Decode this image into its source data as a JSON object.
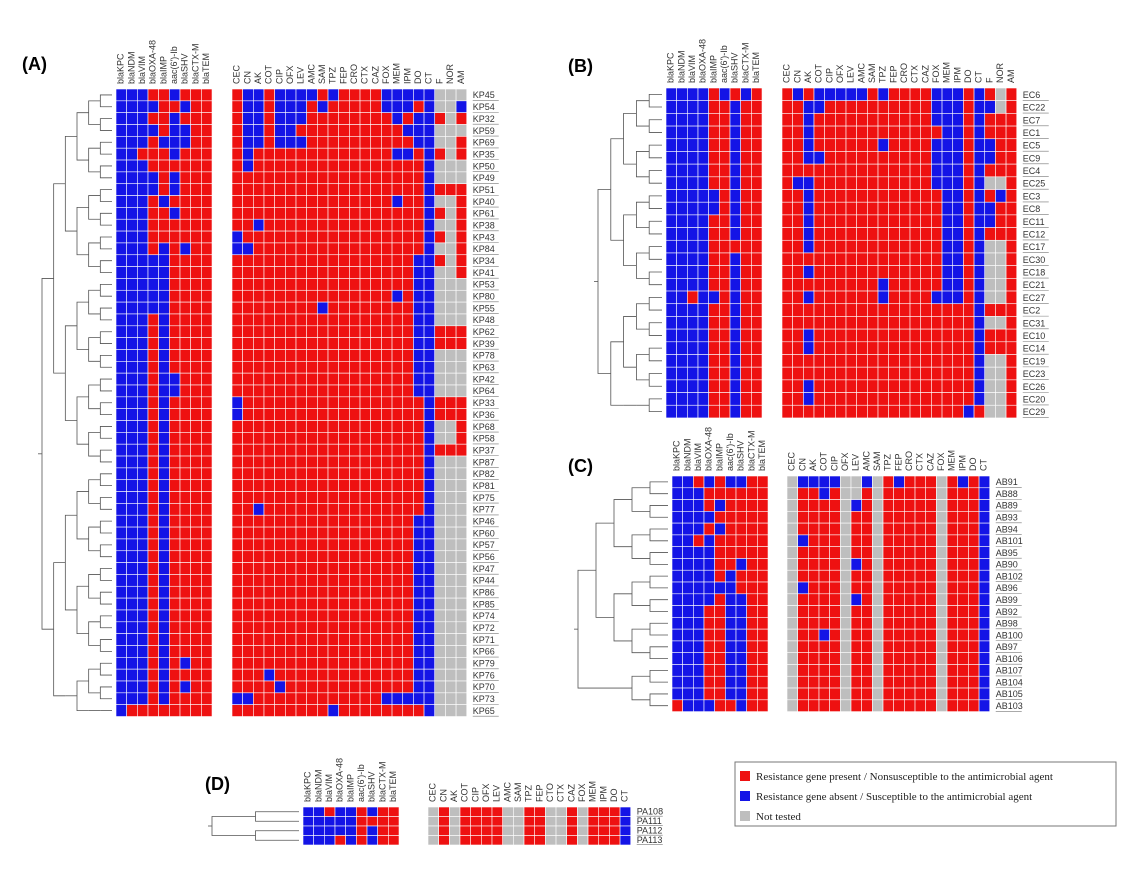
{
  "colors": {
    "resistant": "#ee1111",
    "susceptible": "#1414e6",
    "not_tested": "#bebebe"
  },
  "legend": {
    "items": [
      {
        "label": "Resistance gene present / Nonsusceptible to the antimicrobial agent",
        "color": "#ee1111"
      },
      {
        "label": "Resistance gene absent / Susceptible to the antimicrobial agent",
        "color": "#1414e6"
      },
      {
        "label": "Not tested",
        "color": "#bebebe"
      }
    ]
  },
  "chart_data": [
    {
      "type": "heatmap",
      "panel": "(A)",
      "genes": [
        "blaKPC",
        "blaNDM",
        "blaVIM",
        "blaOXA-48",
        "blaIMP",
        "aac(6')-Ib",
        "blaSHV",
        "blaCTX-M",
        "blaTEM"
      ],
      "drugs": [
        "CEC",
        "CN",
        "AK",
        "COT",
        "CIP",
        "OFX",
        "LEV",
        "AMC",
        "SAM",
        "TPZ",
        "FEP",
        "CRO",
        "CTX",
        "CAZ",
        "FOX",
        "MEM",
        "IPM",
        "DO",
        "CT",
        "F",
        "NOR",
        "AM"
      ],
      "rows": [
        {
          "id": "KP45",
          "g": "BBBRRBRRR",
          "d": "RBBRBBBBRBRRRRBBBBBGGG"
        },
        {
          "id": "KP54",
          "g": "BBBBRRBRR",
          "d": "RBBRBBBRBRRRRRBBBRBGGB"
        },
        {
          "id": "KP32",
          "g": "BBBRRBRRR",
          "d": "RBBRBBBRRRRRRRRBRBBRGR"
        },
        {
          "id": "KP59",
          "g": "BBBBRBBRR",
          "d": "RBBRBBRRRRRRRRRRBBBGGG"
        },
        {
          "id": "KP69",
          "g": "BBBRBBBRR",
          "d": "RBBRBBBRRRRRRRRRRBBGGR"
        },
        {
          "id": "KP35",
          "g": "BBRRRBRRR",
          "d": "RBRRRRRRRRRRRRRBBRBRGR"
        },
        {
          "id": "KP50",
          "g": "BBBRRRRRR",
          "d": "RBRRRRRRRRRRRRRRRRBGGG"
        },
        {
          "id": "KP49",
          "g": "BBBBRBRRR",
          "d": "RRRRRRRRRRRRRRRRRRBGGG"
        },
        {
          "id": "KP51",
          "g": "BBBBRBRRR",
          "d": "RRRRRRRRRRRRRRRRRRBRRR"
        },
        {
          "id": "KP40",
          "g": "BBBRBRRRR",
          "d": "RRRRRRRRRRRRRRRBRRBGGR"
        },
        {
          "id": "KP61",
          "g": "BBBRRBRRR",
          "d": "RRRRRRRRRRRRRRRRRRBRGR"
        },
        {
          "id": "KP38",
          "g": "BBBRRRRRR",
          "d": "RRBRRRRRRRRRRRRRRRBGGR"
        },
        {
          "id": "KP43",
          "g": "BBBRRRRRR",
          "d": "BRRRRRRRRRRRRRRRRRBRGR"
        },
        {
          "id": "KP84",
          "g": "BBBRBRBRR",
          "d": "BBRRRRRRRRRRRRRRRRBGGR"
        },
        {
          "id": "KP34",
          "g": "BBBBBRRRR",
          "d": "RRRRRRRRRRRRRRRRRBBRGR"
        },
        {
          "id": "KP41",
          "g": "BBBBBRRRR",
          "d": "RRRRRRRRRRRRRRRRRBBGGR"
        },
        {
          "id": "KP53",
          "g": "BBBBBRRRR",
          "d": "RRRRRRRRRRRRRRRRRBBGGG"
        },
        {
          "id": "KP80",
          "g": "BBBBBRRRR",
          "d": "RRRRRRRRRRRRRRRBRBBGGG"
        },
        {
          "id": "KP55",
          "g": "BBBBBRRRR",
          "d": "RRRRRRRRBRRRRRRRRBBGGG"
        },
        {
          "id": "KP48",
          "g": "BBBRBRRRR",
          "d": "RRRRRRRRRRRRRRRRRBBGGG"
        },
        {
          "id": "KP62",
          "g": "BBBRBRRRR",
          "d": "RRRRRRRRRRRRRRRRRBBRRR"
        },
        {
          "id": "KP39",
          "g": "BBBRBRRRR",
          "d": "RRRRRRRRRRRRRRRRRBBRRR"
        },
        {
          "id": "KP78",
          "g": "BBBRBRRRR",
          "d": "RRRRRRRRRRRRRRRRRBBGGG"
        },
        {
          "id": "KP63",
          "g": "BBBRBRRRR",
          "d": "RRRRRRRRRRRRRRRRRBBGGG"
        },
        {
          "id": "KP42",
          "g": "BBBRBBRRR",
          "d": "RRRRRRRRRRRRRRRRRBBGGG"
        },
        {
          "id": "KP64",
          "g": "BBBRBBRRR",
          "d": "RRRRRRRRRRRRRRRRRBBGGG"
        },
        {
          "id": "KP33",
          "g": "BBBRBRRRR",
          "d": "BRRRRRRRRRRRRRRRRRBRRR"
        },
        {
          "id": "KP36",
          "g": "BBBRBRRRR",
          "d": "BRRRRRRRRRRRRRRRRRBRRR"
        },
        {
          "id": "KP68",
          "g": "BBBRBRRRR",
          "d": "RRRRRRRRRRRRRRRRRRBGGR"
        },
        {
          "id": "KP58",
          "g": "BBBRBRRRR",
          "d": "RRRRRRRRRRRRRRRRRRBGGR"
        },
        {
          "id": "KP37",
          "g": "BBBRBRRRR",
          "d": "RRRRRRRRRRRRRRRRRRBRRR"
        },
        {
          "id": "KP87",
          "g": "BBBRBRRRR",
          "d": "RRRRRRRRRRRRRRRRRRBGGG"
        },
        {
          "id": "KP82",
          "g": "BBBRBRRRR",
          "d": "RRRRRRRRRRRRRRRRRRBGGG"
        },
        {
          "id": "KP81",
          "g": "BBBRBRRRR",
          "d": "RRRRRRRRRRRRRRRRRRBGGG"
        },
        {
          "id": "KP75",
          "g": "BBBRBRRRR",
          "d": "RRRRRRRRRRRRRRRRRRBGGG"
        },
        {
          "id": "KP77",
          "g": "BBBRBRRRR",
          "d": "RRBRRRRRRRRRRRRRRRBGGG"
        },
        {
          "id": "KP46",
          "g": "BBBRBRRRR",
          "d": "RRRRRRRRRRRRRRRRRBBGGG"
        },
        {
          "id": "KP60",
          "g": "BBBRBRRRR",
          "d": "RRRRRRRRRRRRRRRRRBBGGG"
        },
        {
          "id": "KP57",
          "g": "BBBRBRRRR",
          "d": "RRRRRRRRRRRRRRRRRBBGGG"
        },
        {
          "id": "KP56",
          "g": "BBBRBRRRR",
          "d": "RRRRRRRRRRRRRRRRRBBGGG"
        },
        {
          "id": "KP47",
          "g": "BBBRBRRRR",
          "d": "RRRRRRRRRRRRRRRRRBBGGG"
        },
        {
          "id": "KP44",
          "g": "BBBRBRRRR",
          "d": "RRRRRRRRRRRRRRRRRBBGGG"
        },
        {
          "id": "KP86",
          "g": "BBBRBRRRR",
          "d": "RRRRRRRRRRRRRRRRRBBGGG"
        },
        {
          "id": "KP85",
          "g": "BBBRBRRRR",
          "d": "RRRRRRRRRRRRRRRRRBBGGG"
        },
        {
          "id": "KP74",
          "g": "BBBRBRRRR",
          "d": "RRRRRRRRRRRRRRRRRBBGGG"
        },
        {
          "id": "KP72",
          "g": "BBBRBRRRR",
          "d": "RRRRRRRRRRRRRRRRRBBGGG"
        },
        {
          "id": "KP71",
          "g": "BBBRBRRRR",
          "d": "RRRRRRRRRRRRRRRRRBBGGG"
        },
        {
          "id": "KP66",
          "g": "BBBRBRRRR",
          "d": "RRRRRRRRRRRRRRRRRBBGGG"
        },
        {
          "id": "KP79",
          "g": "BBBRBRBRR",
          "d": "RRRRRRRRRRRRRRRRRBBGGG"
        },
        {
          "id": "KP76",
          "g": "BBBRBRRRR",
          "d": "RRRBRRRRRRRRRRRRRBBGGG"
        },
        {
          "id": "KP70",
          "g": "BBBRBRBRR",
          "d": "RRRRBRRRRRRRRRRRRBBGGG"
        },
        {
          "id": "KP73",
          "g": "BBBRBRRRR",
          "d": "BBRRRRRRRRRRRRBBBBBGGG"
        },
        {
          "id": "KP65",
          "g": "BRRRRRRRR",
          "d": "RRRRRRRRRBRRRRRRRRBGGG"
        }
      ]
    },
    {
      "type": "heatmap",
      "panel": "(B)",
      "genes": [
        "blaKPC",
        "blaNDM",
        "blaVIM",
        "blaOXA-48",
        "blaIMP",
        "aac(6')-Ib",
        "blaSHV",
        "blaCTX-M",
        "blaTEM"
      ],
      "drugs": [
        "CEC",
        "CN",
        "AK",
        "COT",
        "CIP",
        "OFX",
        "LEV",
        "AMC",
        "SAM",
        "TPZ",
        "FEP",
        "CRO",
        "CTX",
        "CAZ",
        "FOX",
        "MEM",
        "IPM",
        "DO",
        "CT",
        "F",
        "NOR",
        "AM"
      ],
      "rows": [
        {
          "id": "EC6",
          "g": "BBBBRBRBR",
          "d": "RBRBBBBBRBRRRRBBBRBRGR"
        },
        {
          "id": "EC22",
          "g": "BBBBRRBRR",
          "d": "RRBBRRRRRRRRRRBBBRBBGR"
        },
        {
          "id": "EC7",
          "g": "BBBBRRBRR",
          "d": "RRBRRRRRRRRRRRBBBRBRRR"
        },
        {
          "id": "EC1",
          "g": "BBBBRRBRR",
          "d": "RRBRRRRRRRRRRRRBBRBRRR"
        },
        {
          "id": "EC5",
          "g": "BBBBRRBRR",
          "d": "RRBRRRRRRBRRRRBBBRBBRR"
        },
        {
          "id": "EC9",
          "g": "BBBBRRBRR",
          "d": "RRBBRRRRRRRRRRBBBRBBRR"
        },
        {
          "id": "EC4",
          "g": "BBBBRRBRR",
          "d": "RRRRRRRRRRRRRRBBBRBRRR"
        },
        {
          "id": "EC25",
          "g": "BBBBRRBRR",
          "d": "RBBRRRRRRRRRRRBBBRBGGR"
        },
        {
          "id": "EC3",
          "g": "BBBBBRBRR",
          "d": "RRBRRRRRRRRRRRRBBRBRBR"
        },
        {
          "id": "EC8",
          "g": "BBBBBRBRR",
          "d": "RRBRRRRRRRRRRRRBBRBBRR"
        },
        {
          "id": "EC11",
          "g": "BBBBRRBRR",
          "d": "RRBRRRRRRRRRRRRBBRBBRR"
        },
        {
          "id": "EC12",
          "g": "BBBBRRBRR",
          "d": "RRBRRRRRRRRRRRRBBRBRRR"
        },
        {
          "id": "EC17",
          "g": "BBBBRRRRR",
          "d": "RRBRRRRRRRRRRRRBBRBGGR"
        },
        {
          "id": "EC30",
          "g": "BBBBRRBRR",
          "d": "RRRRRRRRRRRRRRRBBRBGGR"
        },
        {
          "id": "EC18",
          "g": "BBBBRRBRR",
          "d": "RRBRRRRRRRRRRRRBBRBGGR"
        },
        {
          "id": "EC21",
          "g": "BBBBRRBRR",
          "d": "RRRRRRRRRBRRRRRBBRBGGR"
        },
        {
          "id": "EC27",
          "g": "BBRBBRBRR",
          "d": "RRBRRRRRRBRRRRBBBRBGGR"
        },
        {
          "id": "EC2",
          "g": "BBBBRRBRR",
          "d": "RRRRRRRRRRRRRRRRRRBRRR"
        },
        {
          "id": "EC31",
          "g": "BBBBRRBRR",
          "d": "RRRRRRRRRRRRRRRRRRBGGR"
        },
        {
          "id": "EC10",
          "g": "BBBBRRBRR",
          "d": "RRBRRRRRRRRRRRRRRRBRRR"
        },
        {
          "id": "EC14",
          "g": "BBBBRRBRR",
          "d": "RRBRRRRRRRRRRRRRRRBRRR"
        },
        {
          "id": "EC19",
          "g": "BBBBRRBRR",
          "d": "RRRRRRRRRRRRRRRRRRBGGR"
        },
        {
          "id": "EC23",
          "g": "BBBBRRBRR",
          "d": "RRRRRRRRRRRRRRRRRRBGGR"
        },
        {
          "id": "EC26",
          "g": "BBBBRRBRR",
          "d": "RRBRRRRRRRRRRRRRRRBGGR"
        },
        {
          "id": "EC20",
          "g": "BBBBRRBRR",
          "d": "RRBRRRRRRRRRRRRRRRBGGR"
        },
        {
          "id": "EC29",
          "g": "BBBBRRBRR",
          "d": "RRRRRRRRRRRRRRRRRBRGGR"
        }
      ]
    },
    {
      "type": "heatmap",
      "panel": "(C)",
      "genes": [
        "blaKPC",
        "blaNDM",
        "blaVIM",
        "blaOXA-48",
        "blaIMP",
        "aac(6')-Ib",
        "blaSHV",
        "blaCTX-M",
        "blaTEM"
      ],
      "drugs": [
        "CEC",
        "CN",
        "AK",
        "COT",
        "CIP",
        "OFX",
        "LEV",
        "AMC",
        "SAM",
        "TPZ",
        "FEP",
        "CRO",
        "CTX",
        "CAZ",
        "FOX",
        "MEM",
        "IPM",
        "DO",
        "CT"
      ],
      "rows": [
        {
          "id": "AB91",
          "g": "BBRBRBBRR",
          "d": "GBBBBGGBGRBRRRGRBRB"
        },
        {
          "id": "AB88",
          "g": "BBBRRRRRR",
          "d": "GRRBRGGRGRRRRRGRRRB"
        },
        {
          "id": "AB89",
          "g": "BBBRBRRRR",
          "d": "GRRRRGBRGRRRRRGRRRB"
        },
        {
          "id": "AB93",
          "g": "BBBBRRRRR",
          "d": "GRRRRGRRGRRRRRGRRRB"
        },
        {
          "id": "AB94",
          "g": "BBBRBRRRR",
          "d": "GRRRRGRRGRRRRRGRRRB"
        },
        {
          "id": "AB101",
          "g": "BBRBRRRRR",
          "d": "GBRRRGRRGRRRRRGRRRB"
        },
        {
          "id": "AB95",
          "g": "BBBBRRRRR",
          "d": "GRRRRGRRGRRRRRGRRRB"
        },
        {
          "id": "AB90",
          "g": "BBBBRRBRR",
          "d": "GRRRRGBRGRRRRRGRRRB"
        },
        {
          "id": "AB102",
          "g": "BBBBRBRRR",
          "d": "GRRRRGRRGRRRRRGRRRB"
        },
        {
          "id": "AB96",
          "g": "BBBBBBRRR",
          "d": "GBRRRGRRGRRRRRGRRRB"
        },
        {
          "id": "AB99",
          "g": "BBBBRBBRR",
          "d": "GRRRRGBRGRRRRRGRRRB"
        },
        {
          "id": "AB92",
          "g": "BBBRRBBRR",
          "d": "GRRRRGRRGRRRRRGRRRB"
        },
        {
          "id": "AB98",
          "g": "BBBRRBBRR",
          "d": "GRRRRGRRGRRRRRGRRRB"
        },
        {
          "id": "AB100",
          "g": "BBBRRBBRR",
          "d": "GRRBRGRRGRRRRRGRRRB"
        },
        {
          "id": "AB97",
          "g": "BBBRRBBRR",
          "d": "GRRRRGRRGRRRRRGRRRB"
        },
        {
          "id": "AB106",
          "g": "BBBRRBBRR",
          "d": "GRRRRGRRGRRRRRGRRRB"
        },
        {
          "id": "AB107",
          "g": "BBBRRBBRR",
          "d": "GRRRRGRRGRRRRRGRRRB"
        },
        {
          "id": "AB104",
          "g": "BBBRRBBRR",
          "d": "GRRRRGRRGRRRRRGRRRB"
        },
        {
          "id": "AB105",
          "g": "BBBRRBBRR",
          "d": "GRRRRGRRGRRRRRGRRRB"
        },
        {
          "id": "AB103",
          "g": "RBBBRRBRR",
          "d": "GRRRRGRRGRRRRRGRRRB"
        }
      ]
    },
    {
      "type": "heatmap",
      "panel": "(D)",
      "genes": [
        "blaKPC",
        "blaNDM",
        "blaVIM",
        "blaOXA-48",
        "blaIMP",
        "aac(6')-Ib",
        "blaSHV",
        "blaCTX-M",
        "blaTEM"
      ],
      "drugs": [
        "CEC",
        "CN",
        "AK",
        "COT",
        "CIP",
        "OFX",
        "LEV",
        "AMC",
        "SAM",
        "TPZ",
        "FEP",
        "CTO",
        "CTX",
        "CAZ",
        "FOX",
        "MEM",
        "IPM",
        "DO",
        "CT"
      ],
      "rows": [
        {
          "id": "PA108",
          "g": "BBRBBRBRR",
          "d": "GRGRRRRGGRRGGRGRRRB"
        },
        {
          "id": "PA111",
          "g": "BBBBBRRRR",
          "d": "GRGRRRRGGRRGGRGRRRB"
        },
        {
          "id": "PA112",
          "g": "BBBBBRBRR",
          "d": "GRGRRRRGGRRGGRGRRRB"
        },
        {
          "id": "PA113",
          "g": "BBBRBRBRR",
          "d": "GRGRRRRGGRRGGRGRRRB"
        }
      ]
    }
  ]
}
